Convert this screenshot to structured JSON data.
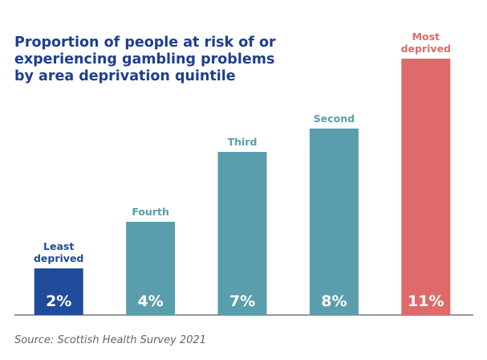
{
  "chart_data": {
    "type": "bar",
    "title": [
      "Proportion of people at risk of or",
      "experiencing gambling problems",
      "by area deprivation quintile"
    ],
    "categories": [
      [
        "Least",
        "deprived"
      ],
      [
        "Fourth"
      ],
      [
        "Third"
      ],
      [
        "Second"
      ],
      [
        "Most",
        "deprived"
      ]
    ],
    "values": [
      2,
      4,
      7,
      8,
      11
    ],
    "value_labels": [
      "2%",
      "4%",
      "7%",
      "8%",
      "11%"
    ],
    "colors": [
      "#1e4c9a",
      "#5a9ead",
      "#5a9ead",
      "#5a9ead",
      "#e06a6a"
    ],
    "source": "Source: Scottish Health Survey 2021"
  }
}
